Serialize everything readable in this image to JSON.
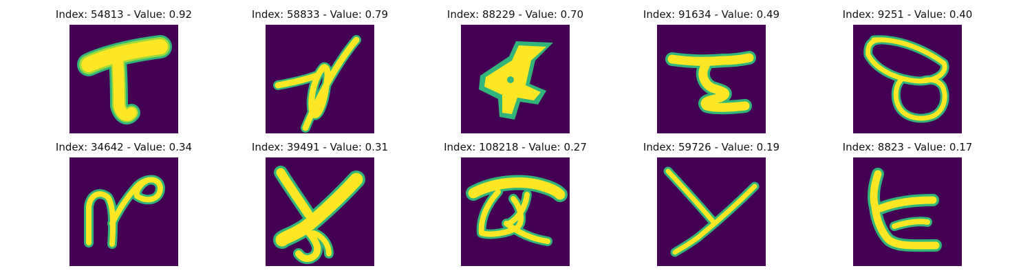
{
  "figure": {
    "colormap": "viridis",
    "background_color": "#ffffff",
    "panels": [
      {
        "title": "Index: 54813 - Value: 0.92",
        "index": 54813,
        "value": 0.92,
        "shape": "thick-wedge-stroke"
      },
      {
        "title": "Index: 58833 - Value: 0.79",
        "index": 58833,
        "value": 0.79,
        "shape": "slanted-loop-arrow"
      },
      {
        "title": "Index: 88229 - Value: 0.70",
        "index": 88229,
        "value": 0.7,
        "shape": "bold-star-blob"
      },
      {
        "title": "Index: 91634 - Value: 0.49",
        "index": 91634,
        "value": 0.49,
        "shape": "z-like-stroke"
      },
      {
        "title": "Index: 9251 - Value: 0.40",
        "index": 9251,
        "value": 0.4,
        "shape": "double-loop"
      },
      {
        "title": "Index: 34642 - Value: 0.34",
        "index": 34642,
        "value": 0.34,
        "shape": "n-with-loop"
      },
      {
        "title": "Index: 39491 - Value: 0.31",
        "index": 39491,
        "value": 0.31,
        "shape": "x-with-hook"
      },
      {
        "title": "Index: 108218 - Value: 0.27",
        "index": 108218,
        "value": 0.27,
        "shape": "a-like-loop"
      },
      {
        "title": "Index: 59726 - Value: 0.19",
        "index": 59726,
        "value": 0.19,
        "shape": "y-stroke"
      },
      {
        "title": "Index: 8823 - Value: 0.17",
        "index": 8823,
        "value": 0.17,
        "shape": "t-curve"
      }
    ]
  }
}
